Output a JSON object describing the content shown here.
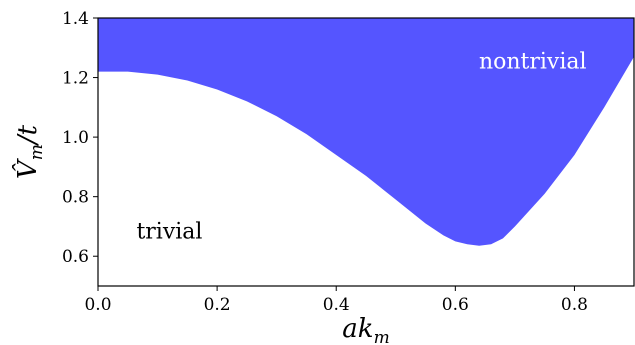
{
  "chart_data": {
    "type": "area",
    "xlabel": "ak_m",
    "ylabel": "V̂_m/t",
    "xlim": [
      0.0,
      0.9
    ],
    "ylim": [
      0.5,
      1.4
    ],
    "xticks": [
      "0.0",
      "0.2",
      "0.4",
      "0.6",
      "0.8"
    ],
    "yticks": [
      "0.6",
      "0.8",
      "1.0",
      "1.2",
      "1.4"
    ],
    "grid": false,
    "boundary": {
      "x": [
        0.0,
        0.05,
        0.1,
        0.15,
        0.2,
        0.25,
        0.3,
        0.35,
        0.4,
        0.45,
        0.5,
        0.55,
        0.58,
        0.6,
        0.62,
        0.64,
        0.66,
        0.68,
        0.7,
        0.75,
        0.8,
        0.85,
        0.9
      ],
      "y": [
        1.22,
        1.22,
        1.21,
        1.19,
        1.16,
        1.12,
        1.07,
        1.01,
        0.94,
        0.87,
        0.79,
        0.71,
        0.67,
        0.65,
        0.64,
        0.635,
        0.64,
        0.66,
        0.7,
        0.81,
        0.94,
        1.1,
        1.27
      ]
    },
    "fill_color": "#5555ff",
    "regions": {
      "upper": "nontrivial",
      "lower": "trivial"
    }
  }
}
